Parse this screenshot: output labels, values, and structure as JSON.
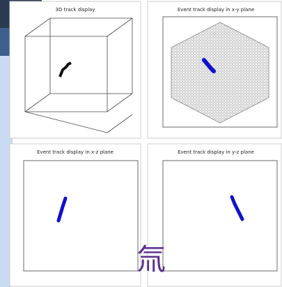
{
  "panels": [
    {
      "title": "3D track display"
    },
    {
      "title": "Event track display in x-y plane"
    },
    {
      "title": "Event track display in x-z plane"
    },
    {
      "title": "Event track display in y-z plane"
    }
  ],
  "overlay": {
    "character": "氚"
  }
}
